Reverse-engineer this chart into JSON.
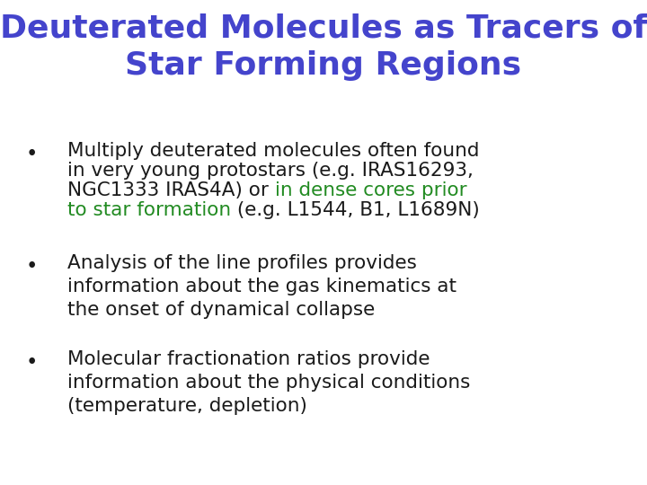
{
  "title_line1": "Deuterated Molecules as Tracers of",
  "title_line2": "Star Forming Regions",
  "title_color": "#4444cc",
  "background_color": "#ffffff",
  "black_color": "#1a1a1a",
  "green_color": "#228B22",
  "font_size_title": 26,
  "font_size_body": 15.5,
  "fig_width": 7.2,
  "fig_height": 5.4,
  "dpi": 100
}
